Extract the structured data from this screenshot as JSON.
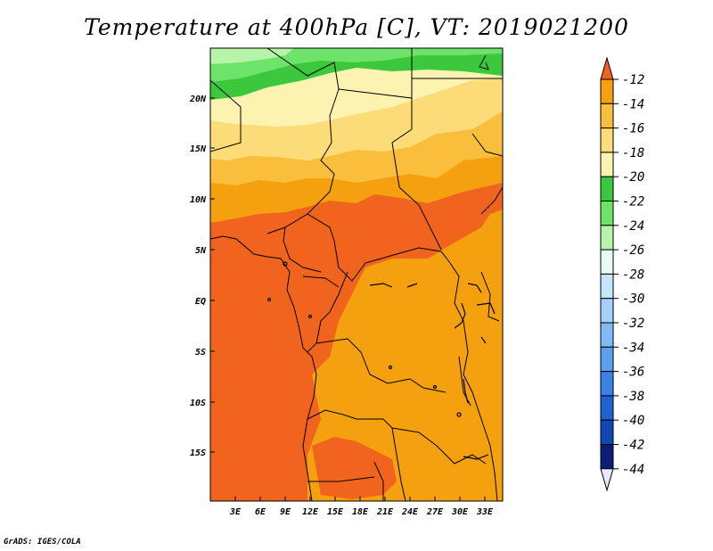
{
  "title": "Temperature at 400hPa [C], VT: 2019021200",
  "footer": "GrADS: IGES/COLA",
  "map": {
    "lon_range": [
      0,
      35
    ],
    "lat_range": [
      -20,
      25
    ],
    "lat_ticks": [
      "20N",
      "15N",
      "10N",
      "5N",
      "EQ",
      "5S",
      "10S",
      "15S"
    ],
    "lon_ticks": [
      "3E",
      "6E",
      "9E",
      "12E",
      "15E",
      "18E",
      "21E",
      "24E",
      "27E",
      "30E",
      "33E"
    ],
    "colors": {
      "deep_orange": "#f0641e",
      "orange": "#f5a00f",
      "light_orange": "#f8be3c",
      "yellow": "#fbdc78",
      "pale_yellow": "#fdf3b1",
      "green": "#3cc83c",
      "light_green": "#6ee36a",
      "pale_green": "#b7f3a8"
    }
  },
  "colorbar": {
    "levels": [
      "-12",
      "-14",
      "-16",
      "-18",
      "-20",
      "-22",
      "-24",
      "-26",
      "-28",
      "-30",
      "-32",
      "-34",
      "-36",
      "-38",
      "-40",
      "-42",
      "-44"
    ],
    "colors": [
      "#f0641e",
      "#f5a00f",
      "#f8be3c",
      "#fbdc78",
      "#fdf3b1",
      "#3cc83c",
      "#6ee36a",
      "#b7f3a8",
      "#e6fff0",
      "#c4e6ff",
      "#a3d1fa",
      "#82baf5",
      "#5aa0ee",
      "#3c82e6",
      "#1e62d2",
      "#0f48b4",
      "#0a1e78",
      "#e8e8ff"
    ]
  }
}
